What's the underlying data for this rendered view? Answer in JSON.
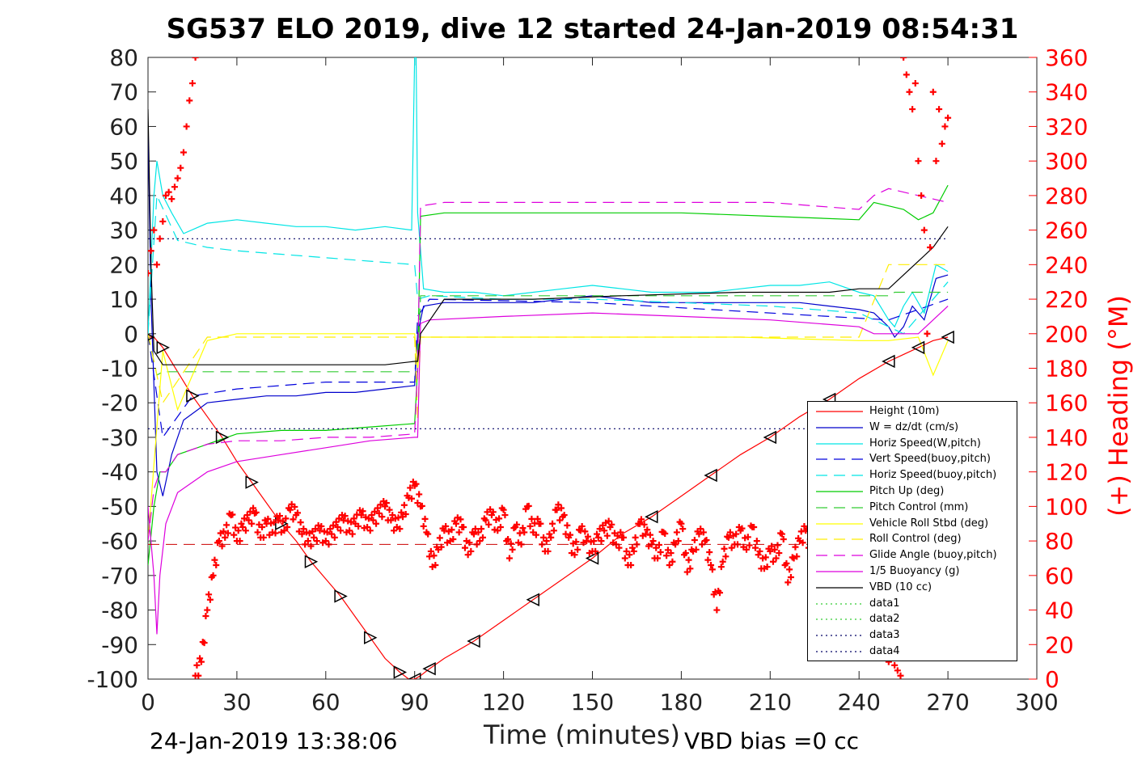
{
  "chart_data": {
    "type": "line",
    "title": "SG537 ELO 2019, dive 12 started 24-Jan-2019 08:54:31",
    "xlabel": "Time (minutes)",
    "ylabel": "",
    "y2label": "(+) Heading (°M)",
    "xlim": [
      0,
      300
    ],
    "ylim": [
      -100,
      80
    ],
    "y2lim": [
      0,
      360
    ],
    "xticks": [
      "0",
      "30",
      "60",
      "90",
      "120",
      "150",
      "180",
      "210",
      "240",
      "270",
      "300"
    ],
    "yticks": [
      "80",
      "70",
      "60",
      "50",
      "40",
      "30",
      "20",
      "10",
      "0",
      "-10",
      "-20",
      "-30",
      "-40",
      "-50",
      "-60",
      "-70",
      "-80",
      "-90",
      "-100"
    ],
    "y2ticks": [
      "360",
      "340",
      "320",
      "300",
      "280",
      "260",
      "240",
      "220",
      "200",
      "180",
      "160",
      "140",
      "120",
      "100",
      "80",
      "60",
      "40",
      "20",
      "0"
    ],
    "timestamp": "24-Jan-2019 13:38:06",
    "footnote": "VBD bias =0 cc",
    "legend_position": "lower-right",
    "series": [
      {
        "name": "Height (10m)",
        "color": "#ff0000",
        "style": "solid",
        "x": [
          0,
          2,
          5,
          10,
          15,
          20,
          25,
          30,
          35,
          40,
          45,
          50,
          55,
          60,
          65,
          70,
          75,
          80,
          85,
          88,
          90,
          92,
          95,
          100,
          110,
          120,
          130,
          140,
          150,
          160,
          170,
          180,
          190,
          200,
          210,
          220,
          230,
          240,
          250,
          255,
          260,
          265,
          270
        ],
        "y": [
          -1,
          -1,
          -4,
          -11,
          -18,
          -24,
          -30,
          -37,
          -43,
          -49,
          -55,
          -60,
          -66,
          -71,
          -76,
          -82,
          -88,
          -94,
          -98,
          -100,
          -100,
          -99,
          -97,
          -94,
          -89,
          -83,
          -77,
          -71,
          -65,
          -58,
          -53,
          -47,
          -41,
          -35,
          -30,
          -24,
          -19,
          -13,
          -8,
          -6,
          -4,
          -2,
          -1
        ]
      },
      {
        "name": "W = dz/dt (cm/s)",
        "color": "#0000cc",
        "style": "solid",
        "x": [
          0,
          1,
          3,
          5,
          8,
          12,
          20,
          30,
          40,
          50,
          60,
          70,
          80,
          90,
          91,
          93,
          100,
          110,
          120,
          130,
          140,
          150,
          160,
          170,
          180,
          190,
          200,
          210,
          220,
          230,
          240,
          245,
          250,
          252,
          255,
          258,
          262,
          266,
          270
        ],
        "y": [
          60,
          10,
          -40,
          -47,
          -35,
          -25,
          -20,
          -19,
          -18,
          -18,
          -17,
          -17,
          -16,
          -15,
          0,
          8,
          9,
          9,
          9,
          9,
          10,
          11,
          10,
          9,
          9,
          9,
          9,
          9,
          9,
          8,
          7,
          6,
          2,
          -1,
          2,
          8,
          4,
          16,
          17
        ]
      },
      {
        "name": "Horiz Speed(W,pitch)",
        "color": "#00e5e5",
        "style": "solid",
        "x": [
          0,
          2,
          3,
          5,
          8,
          12,
          20,
          30,
          40,
          50,
          60,
          70,
          80,
          89,
          90,
          90.5,
          91,
          93,
          100,
          110,
          120,
          130,
          140,
          150,
          160,
          170,
          180,
          190,
          200,
          210,
          220,
          230,
          240,
          245,
          250,
          252,
          255,
          258,
          262,
          266,
          270
        ],
        "y": [
          0,
          40,
          50,
          40,
          35,
          29,
          32,
          33,
          32,
          31,
          31,
          30,
          31,
          30,
          80,
          80,
          35,
          13,
          12,
          12,
          11,
          12,
          13,
          14,
          13,
          12,
          12,
          12,
          13,
          14,
          14,
          15,
          12,
          11,
          4,
          2,
          8,
          12,
          6,
          20,
          18
        ]
      },
      {
        "name": "Vert Speed(buoy,pitch)",
        "color": "#0000dd",
        "style": "dashed",
        "x": [
          0,
          5,
          15,
          30,
          60,
          90,
          91,
          95,
          150,
          250,
          270
        ],
        "y": [
          0,
          -30,
          -18,
          -16,
          -14,
          -14,
          5,
          10,
          9,
          4,
          10
        ]
      },
      {
        "name": "Horiz Speed(buoy,pitch)",
        "color": "#00e5e5",
        "style": "dashed",
        "x": [
          0,
          3,
          10,
          20,
          30,
          45,
          60,
          75,
          90,
          91,
          95,
          120,
          150,
          180,
          210,
          240,
          255,
          270
        ],
        "y": [
          0,
          40,
          27,
          25,
          24,
          23,
          22,
          21,
          20,
          10,
          11,
          10,
          10,
          9,
          8,
          6,
          0,
          15
        ]
      },
      {
        "name": "Pitch Up (deg)",
        "color": "#00cc00",
        "style": "solid",
        "x": [
          0,
          2,
          4,
          6,
          10,
          20,
          30,
          45,
          60,
          75,
          90,
          91,
          92,
          100,
          120,
          150,
          180,
          210,
          240,
          245,
          250,
          255,
          260,
          265,
          270
        ],
        "y": [
          -67,
          -50,
          -40,
          -40,
          -35,
          -32,
          -29,
          -28,
          -28,
          -27,
          -26,
          -10,
          34,
          35,
          35,
          35,
          35,
          34,
          33,
          38,
          37,
          36,
          33,
          35,
          43
        ]
      },
      {
        "name": "Pitch Control (mm)",
        "color": "#33cc33",
        "style": "dashed",
        "x": [
          0,
          3,
          5,
          30,
          60,
          90,
          91,
          92,
          150,
          250,
          252,
          270
        ],
        "y": [
          0,
          -12,
          -11,
          -11,
          -11,
          -11,
          -11,
          11,
          11,
          11,
          12,
          12
        ]
      },
      {
        "name": "Vehicle Roll Stbd (deg)",
        "color": "#ffff00",
        "style": "solid",
        "x": [
          0,
          5,
          10,
          20,
          30,
          60,
          90,
          91,
          92,
          100,
          150,
          200,
          240,
          250,
          260,
          265,
          270
        ],
        "y": [
          -60,
          -5,
          -22,
          -2,
          0,
          0,
          0,
          -10,
          -1,
          -1,
          -1,
          -1,
          -2,
          -2,
          -1,
          -12,
          -2
        ]
      },
      {
        "name": "Roll Control (deg)",
        "color": "#ffee00",
        "style": "dashed",
        "x": [
          0,
          5,
          20,
          60,
          90,
          91,
          92,
          150,
          200,
          240,
          250,
          270
        ],
        "y": [
          0,
          -20,
          -1,
          -1,
          -1,
          -25,
          -1,
          -1,
          -1,
          -1,
          20,
          20
        ]
      },
      {
        "name": "Glide Angle (buoy,pitch)",
        "color": "#dd00dd",
        "style": "dashed",
        "x": [
          0,
          2,
          4,
          6,
          10,
          20,
          30,
          45,
          60,
          75,
          90,
          91,
          92,
          100,
          120,
          150,
          180,
          210,
          240,
          245,
          250,
          260,
          270
        ],
        "y": [
          -60,
          -45,
          -40,
          -40,
          -35,
          -32,
          -31,
          -31,
          -30,
          -30,
          -29,
          -10,
          37,
          38,
          38,
          38,
          38,
          38,
          36,
          40,
          42,
          40,
          38
        ]
      },
      {
        "name": "1/5 Buoyancy (g)",
        "color": "#dd00dd",
        "style": "solid",
        "x": [
          0,
          2,
          3,
          4,
          6,
          10,
          20,
          30,
          45,
          60,
          75,
          90,
          91,
          92,
          95,
          120,
          150,
          180,
          210,
          240,
          245,
          250,
          260,
          270
        ],
        "y": [
          -50,
          -70,
          -87,
          -70,
          -55,
          -46,
          -40,
          -37,
          -35,
          -33,
          -31,
          -30,
          -30,
          3,
          4,
          5,
          6,
          5,
          4,
          2,
          0,
          0,
          0,
          8
        ]
      },
      {
        "name": "VBD (10 cc)",
        "color": "#000000",
        "style": "solid",
        "x": [
          0,
          1,
          2,
          5,
          20,
          40,
          60,
          80,
          90,
          91,
          92,
          100,
          130,
          160,
          200,
          230,
          240,
          250,
          255,
          260,
          265,
          270
        ],
        "y": [
          65,
          20,
          -5,
          -9,
          -9,
          -9,
          -9,
          -9,
          -8,
          -8,
          0,
          10,
          10,
          11,
          12,
          12,
          13,
          13,
          17,
          21,
          25,
          31
        ]
      },
      {
        "name": "data1",
        "color": "#33cc33",
        "style": "dotted",
        "x": [],
        "y": []
      },
      {
        "name": "data2",
        "color": "#33cc33",
        "style": "dotted",
        "x": [],
        "y": []
      },
      {
        "name": "data3",
        "color": "#000066",
        "style": "dotted",
        "x": [
          0,
          270
        ],
        "y": [
          27.5,
          27.5
        ]
      },
      {
        "name": "data4",
        "color": "#000066",
        "style": "dotted",
        "x": [
          0,
          270
        ],
        "y": [
          -27.5,
          -27.5
        ]
      }
    ],
    "heading": {
      "name": "Heading",
      "color": "#ff0000",
      "axis": "right",
      "x": [
        0,
        1,
        2,
        3,
        4,
        5,
        6,
        7,
        8,
        9,
        10,
        11,
        12,
        13,
        14,
        15,
        16,
        17,
        18,
        19,
        20,
        22,
        24,
        26,
        28,
        30,
        32,
        34,
        36,
        38,
        40,
        42,
        44,
        46,
        48,
        50,
        52,
        54,
        56,
        58,
        60,
        62,
        64,
        66,
        68,
        70,
        72,
        74,
        76,
        78,
        80,
        82,
        84,
        86,
        88,
        90,
        92,
        94,
        96,
        98,
        100,
        102,
        104,
        106,
        108,
        110,
        112,
        114,
        116,
        118,
        120,
        122,
        124,
        126,
        128,
        130,
        132,
        134,
        136,
        138,
        140,
        142,
        144,
        146,
        148,
        150,
        152,
        154,
        156,
        158,
        160,
        162,
        164,
        166,
        168,
        170,
        172,
        174,
        176,
        178,
        180,
        182,
        184,
        186,
        188,
        190,
        192,
        194,
        196,
        198,
        200,
        202,
        204,
        206,
        208,
        210,
        212,
        214,
        216,
        218,
        220,
        222,
        224,
        226,
        228,
        230,
        232,
        234,
        236,
        238,
        240,
        242,
        244,
        246,
        248,
        250,
        252,
        254,
        256,
        258,
        260,
        262,
        264,
        266,
        268,
        270
      ],
      "y": [
        235,
        248,
        260,
        240,
        255,
        265,
        280,
        282,
        278,
        285,
        290,
        296,
        305,
        320,
        335,
        345,
        360,
        null,
        null,
        null,
        null,
        null,
        null,
        null,
        null,
        null,
        null,
        null,
        null,
        null,
        null,
        null,
        null,
        null,
        null,
        null,
        null,
        null,
        null,
        null,
        null,
        null,
        null,
        null,
        null,
        null,
        null,
        null,
        null,
        null,
        null,
        null,
        null,
        null,
        null,
        null,
        null,
        null,
        null,
        null,
        null,
        null,
        null,
        null,
        null,
        null,
        null,
        null,
        null,
        null,
        null,
        null,
        null,
        null,
        null,
        null,
        null,
        null,
        null,
        null,
        null,
        null,
        null,
        null,
        null,
        null,
        null,
        null,
        null,
        null,
        null,
        null,
        null,
        null,
        null,
        null,
        null,
        null,
        null,
        null,
        null,
        null,
        null,
        null,
        null,
        null,
        null,
        null,
        null,
        null,
        null,
        null,
        null,
        null,
        null,
        null,
        null,
        null,
        null,
        null,
        null,
        null,
        null,
        null,
        null,
        null,
        null,
        null,
        null,
        null,
        null,
        null,
        null,
        null,
        null,
        null,
        null,
        null,
        null,
        null,
        null,
        null,
        null,
        null,
        null,
        null
      ],
      "x2": [
        16,
        18,
        20,
        22,
        24,
        26,
        28,
        30,
        32,
        34,
        36,
        38,
        40,
        42,
        44,
        46,
        48,
        50,
        52,
        54,
        56,
        58,
        60,
        62,
        64,
        66,
        68,
        70,
        72,
        74,
        76,
        78,
        80,
        82,
        84,
        86,
        88,
        90,
        92,
        94,
        96,
        98,
        100,
        102,
        104,
        106,
        108,
        110,
        112,
        114,
        116,
        118,
        120,
        122,
        124,
        126,
        128,
        130,
        132,
        134,
        136,
        138,
        140,
        142,
        144,
        146,
        148,
        150,
        152,
        154,
        156,
        158,
        160,
        162,
        164,
        166,
        168,
        170,
        172,
        174,
        176,
        178,
        180,
        182,
        184,
        186,
        188,
        190,
        192,
        194,
        196,
        198,
        200,
        202,
        204,
        206,
        208,
        210,
        212,
        214,
        216,
        218,
        220,
        222,
        224,
        226,
        228,
        230,
        232,
        234,
        236,
        238,
        240,
        242,
        244,
        246,
        248,
        250
      ],
      "y2": [
        2,
        10,
        40,
        60,
        80,
        82,
        95,
        80,
        88,
        92,
        96,
        82,
        90,
        85,
        92,
        86,
        98,
        95,
        84,
        80,
        82,
        86,
        80,
        84,
        88,
        92,
        86,
        90,
        95,
        88,
        92,
        96,
        100,
        92,
        88,
        94,
        105,
        112,
        100,
        85,
        65,
        75,
        86,
        80,
        90,
        88,
        72,
        84,
        80,
        92,
        95,
        86,
        98,
        70,
        88,
        78,
        100,
        85,
        90,
        74,
        82,
        98,
        94,
        82,
        72,
        86,
        80,
        74,
        82,
        86,
        88,
        78,
        82,
        66,
        74,
        90,
        84,
        78,
        70,
        85,
        66,
        78,
        90,
        62,
        74,
        84,
        80,
        66,
        40,
        68,
        82,
        78,
        86,
        75,
        88,
        72,
        64,
        74,
        70,
        84,
        56,
        70,
        80,
        86,
        74,
        62,
        60,
        72,
        78,
        84,
        70,
        66,
        72,
        80,
        62,
        74,
        84,
        70
      ],
      "x3": [
        250,
        252,
        253,
        254,
        255,
        256,
        257,
        258,
        259,
        260,
        261,
        262,
        263,
        264,
        265,
        266,
        267,
        268,
        269,
        270
      ],
      "y3": [
        10,
        8,
        5,
        2,
        360,
        350,
        340,
        330,
        345,
        300,
        280,
        260,
        200,
        250,
        340,
        300,
        330,
        310,
        320,
        325
      ]
    }
  }
}
